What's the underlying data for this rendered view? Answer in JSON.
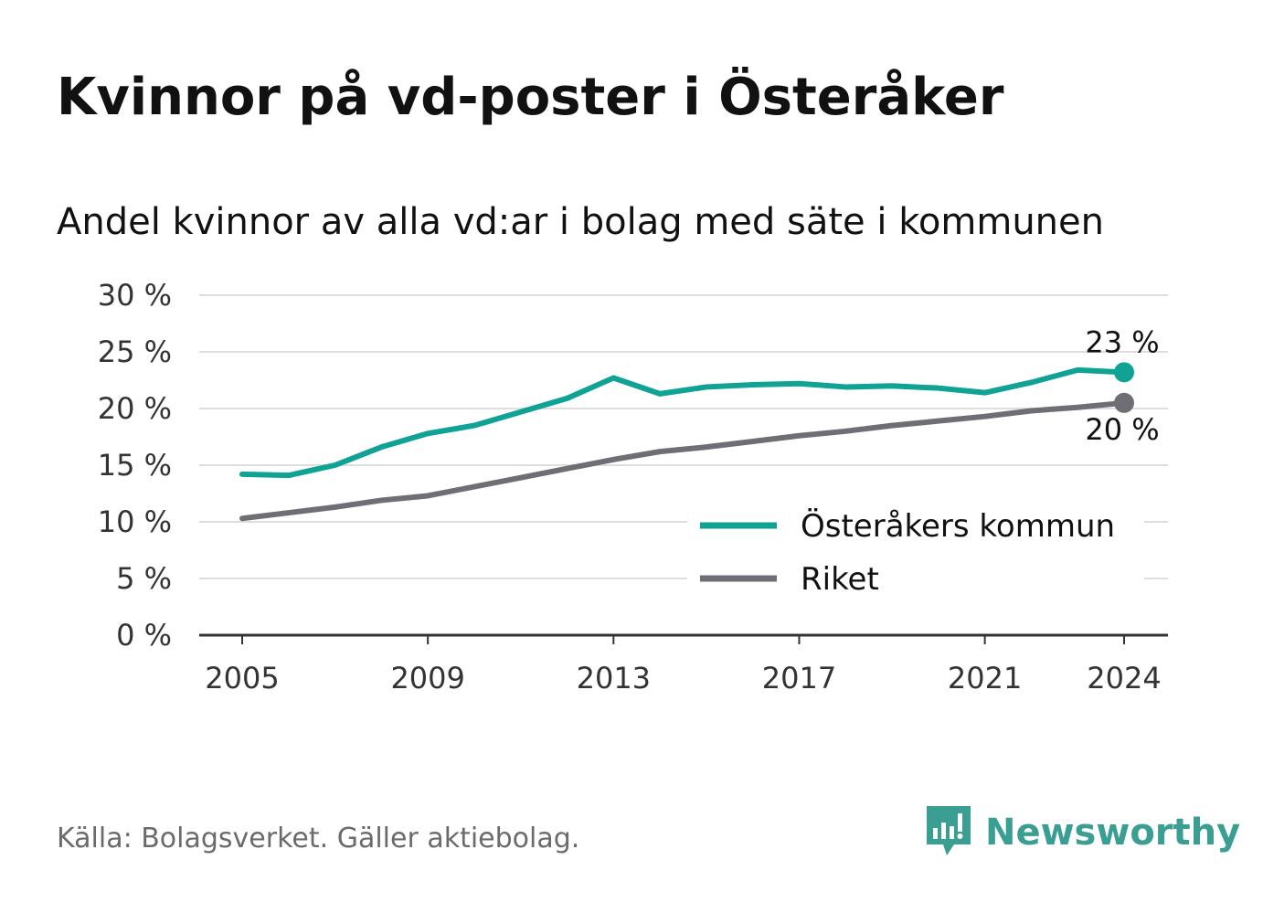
{
  "header": {
    "title": "Kvinnor på vd-poster i Österåker",
    "subtitle": "Andel kvinnor av alla vd:ar i bolag med säte i kommunen"
  },
  "footer": {
    "source": "Källa: Bolagsverket. Gäller aktiebolag.",
    "brand": "Newsworthy",
    "brand_icon": "bar-chart-speech-bubble-icon"
  },
  "colors": {
    "kommun": "#0fa295",
    "riket": "#6e6e74",
    "grid": "#dedede",
    "axis": "#333333",
    "brand": "#3a9e92"
  },
  "chart_data": {
    "type": "line",
    "x": [
      2005,
      2006,
      2007,
      2008,
      2009,
      2010,
      2011,
      2012,
      2013,
      2014,
      2015,
      2016,
      2017,
      2018,
      2019,
      2020,
      2021,
      2022,
      2023,
      2024
    ],
    "series": [
      {
        "name": "Österåkers kommun",
        "values": [
          14.2,
          14.1,
          15.0,
          16.6,
          17.8,
          18.5,
          19.7,
          20.9,
          22.7,
          21.3,
          21.9,
          22.1,
          22.2,
          21.9,
          22.0,
          21.8,
          21.4,
          22.3,
          23.4,
          23.2
        ],
        "end_label": "23 %"
      },
      {
        "name": "Riket",
        "values": [
          10.3,
          10.8,
          11.3,
          11.9,
          12.3,
          13.1,
          13.9,
          14.7,
          15.5,
          16.2,
          16.6,
          17.1,
          17.6,
          18.0,
          18.5,
          18.9,
          19.3,
          19.8,
          20.1,
          20.5
        ],
        "end_label": "20 %"
      }
    ],
    "ylim": [
      0,
      30
    ],
    "yticks": [
      0,
      5,
      10,
      15,
      20,
      25,
      30
    ],
    "ytick_labels": [
      "0 %",
      "5 %",
      "10 %",
      "15 %",
      "20 %",
      "25 %",
      "30 %"
    ],
    "xticks": [
      2005,
      2009,
      2013,
      2017,
      2021,
      2024
    ],
    "xtick_labels": [
      "2005",
      "2009",
      "2013",
      "2017",
      "2021",
      "2024"
    ],
    "grid": true,
    "legend_position": "bottom-right"
  }
}
